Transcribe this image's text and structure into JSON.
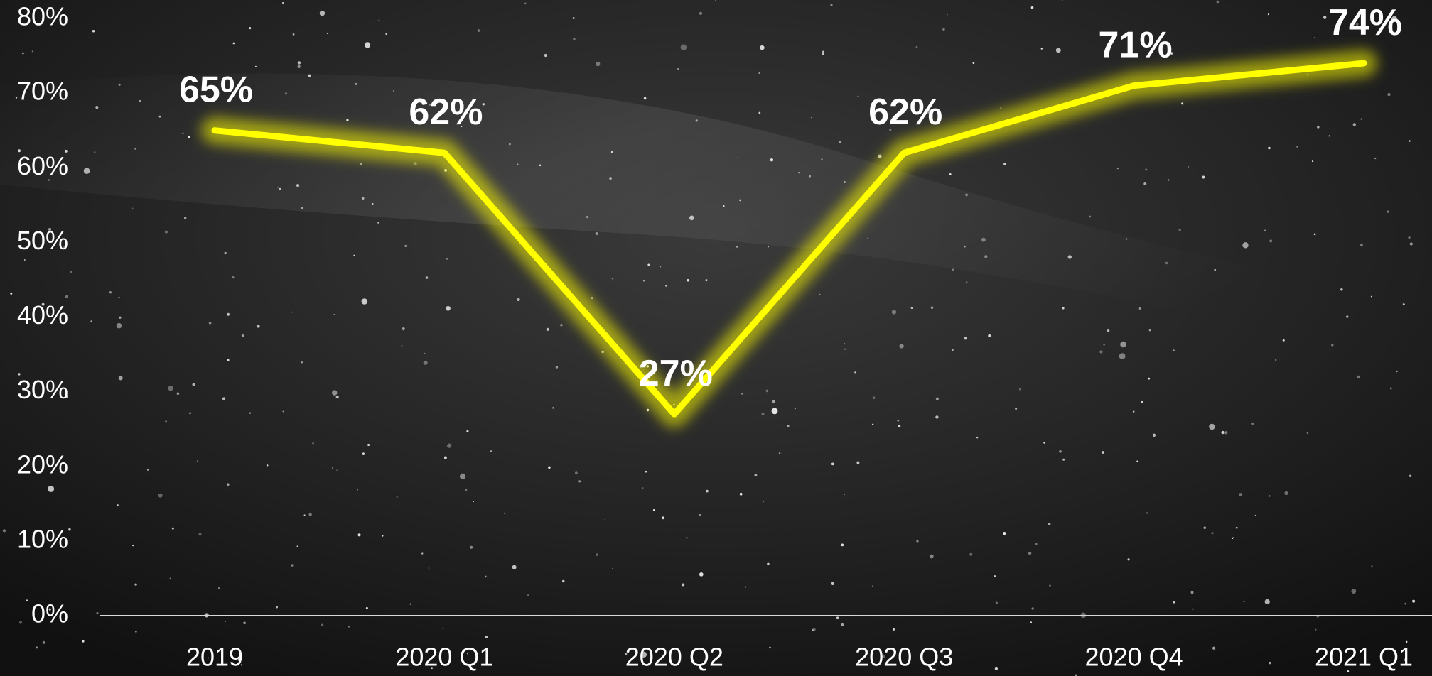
{
  "chart_data": {
    "type": "line",
    "categories": [
      "2019",
      "2020 Q1",
      "2020 Q2",
      "2020 Q3",
      "2020 Q4",
      "2021 Q1"
    ],
    "series": [
      {
        "color": "#ffff00",
        "values": [
          65,
          62,
          27,
          62,
          71,
          74
        ],
        "value_labels": [
          "65%",
          "62%",
          "27%",
          "62%",
          "71%",
          "74%"
        ]
      }
    ],
    "ylim": [
      0,
      80
    ],
    "yticks": [
      {
        "value": 0,
        "label": "0%"
      },
      {
        "value": 10,
        "label": "10%"
      },
      {
        "value": 20,
        "label": "20%"
      },
      {
        "value": 30,
        "label": "30%"
      },
      {
        "value": 40,
        "label": "40%"
      },
      {
        "value": 50,
        "label": "50%"
      },
      {
        "value": 60,
        "label": "60%"
      },
      {
        "value": 70,
        "label": "70%"
      },
      {
        "value": 80,
        "label": "80%"
      }
    ]
  }
}
